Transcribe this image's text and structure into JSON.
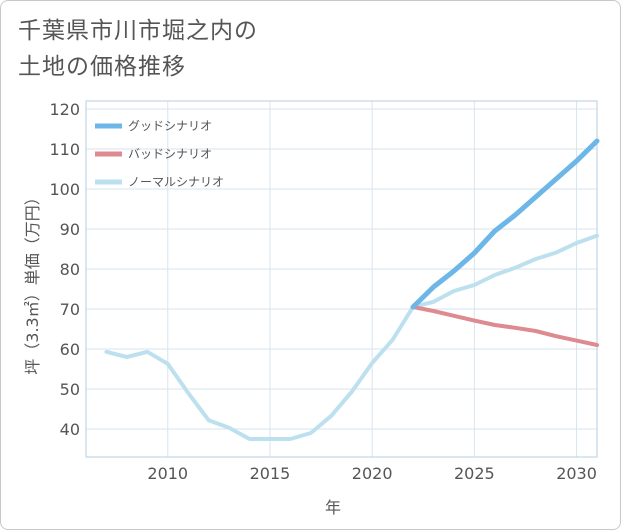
{
  "title_lines": [
    "千葉県市川市堀之内の",
    "土地の価格推移"
  ],
  "chart_data": {
    "type": "line",
    "xlabel": "年",
    "ylabel": "坪（3.3㎡）単価（万円）",
    "xlim": [
      2006,
      2031
    ],
    "ylim": [
      33,
      122
    ],
    "xticks": [
      2010,
      2015,
      2020,
      2025,
      2030
    ],
    "yticks": [
      40,
      50,
      60,
      70,
      80,
      90,
      100,
      110,
      120
    ],
    "grid": true,
    "legend_position": "top-left",
    "series": [
      {
        "name": "グッドシナリオ",
        "color": "#6cb6e8",
        "x": [
          2022,
          2023,
          2024,
          2025,
          2026,
          2027,
          2028,
          2029,
          2030,
          2031
        ],
        "y": [
          70.5,
          75.5,
          79.5,
          84,
          89.5,
          93.5,
          98,
          102.5,
          107,
          112
        ]
      },
      {
        "name": "バッドシナリオ",
        "color": "#dd8a90",
        "x": [
          2022,
          2023,
          2024,
          2025,
          2026,
          2027,
          2028,
          2029,
          2030,
          2031
        ],
        "y": [
          70.5,
          69.5,
          68.3,
          67.1,
          66,
          65.3,
          64.5,
          63.2,
          62.1,
          61
        ]
      },
      {
        "name": "ノーマルシナリオ",
        "color": "#bde0ef",
        "x": [
          2007,
          2008,
          2009,
          2010,
          2011,
          2012,
          2013,
          2014,
          2015,
          2016,
          2017,
          2018,
          2019,
          2020,
          2021,
          2022,
          2023,
          2024,
          2025,
          2026,
          2027,
          2028,
          2029,
          2030,
          2031
        ],
        "y": [
          59.3,
          58,
          59.3,
          56.3,
          49,
          42.2,
          40.3,
          37.5,
          37.5,
          37.5,
          39,
          43.3,
          49.3,
          56.5,
          62.3,
          70.5,
          71.8,
          74.5,
          76,
          78.5,
          80.3,
          82.5,
          84.1,
          86.5,
          88.3
        ]
      }
    ]
  }
}
